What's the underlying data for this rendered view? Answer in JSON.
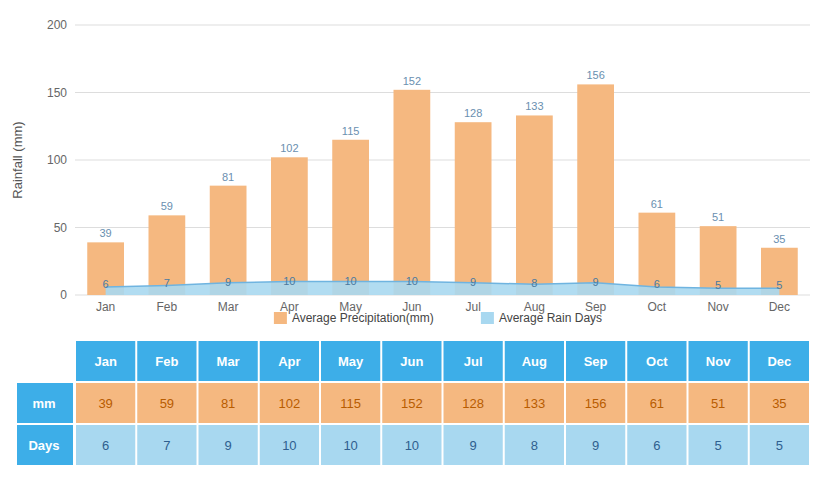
{
  "chart_data": {
    "type": "bar",
    "categories": [
      "Jan",
      "Feb",
      "Mar",
      "Apr",
      "May",
      "Jun",
      "Jul",
      "Aug",
      "Sep",
      "Oct",
      "Nov",
      "Dec"
    ],
    "series": [
      {
        "name": "Average Precipitation(mm)",
        "type": "bar",
        "color": "#F5B880",
        "values": [
          39,
          59,
          81,
          102,
          115,
          152,
          128,
          133,
          156,
          61,
          51,
          35
        ]
      },
      {
        "name": "Average Rain Days",
        "type": "area",
        "color": "#A8D8F0",
        "values": [
          6,
          7,
          9,
          10,
          10,
          10,
          9,
          8,
          9,
          6,
          5,
          5
        ]
      }
    ],
    "ylabel": "Rainfall (mm)",
    "ylim": [
      0,
      200
    ],
    "yticks": [
      0,
      50,
      100,
      150,
      200
    ],
    "grid": true,
    "legend": "bottom",
    "data_labels": true,
    "table_row_labels": [
      "mm",
      "Days"
    ]
  }
}
